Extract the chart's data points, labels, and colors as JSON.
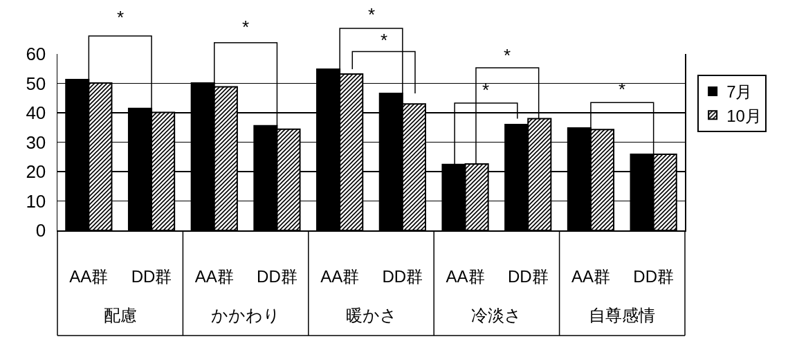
{
  "chart_data": {
    "type": "bar",
    "categories": [
      "AA群",
      "DD群",
      "AA群",
      "DD群",
      "AA群",
      "DD群",
      "AA群",
      "DD群",
      "AA群",
      "DD群"
    ],
    "series": [
      {
        "name": "7月",
        "color": "#000000",
        "values": [
          51.3,
          41.5,
          50.1,
          35.6,
          54.8,
          46.6,
          22.4,
          36,
          34.8,
          25.9
        ]
      },
      {
        "name": "10月",
        "color": "#000000",
        "values": [
          50.1,
          40.1,
          48.8,
          34.4,
          53.2,
          43,
          22.6,
          38,
          34.3,
          25.9
        ]
      }
    ],
    "ylim": [
      0,
      60
    ],
    "yticks": [
      0,
      10,
      20,
      30,
      40,
      50,
      60
    ],
    "grid": "y",
    "legend": "right",
    "annotations": [
      "配慮",
      "かかわり",
      "暖かさ",
      "冷淡さ",
      "自尊感情",
      "*",
      "*",
      "*",
      "*",
      "*",
      "*",
      "*"
    ]
  }
}
